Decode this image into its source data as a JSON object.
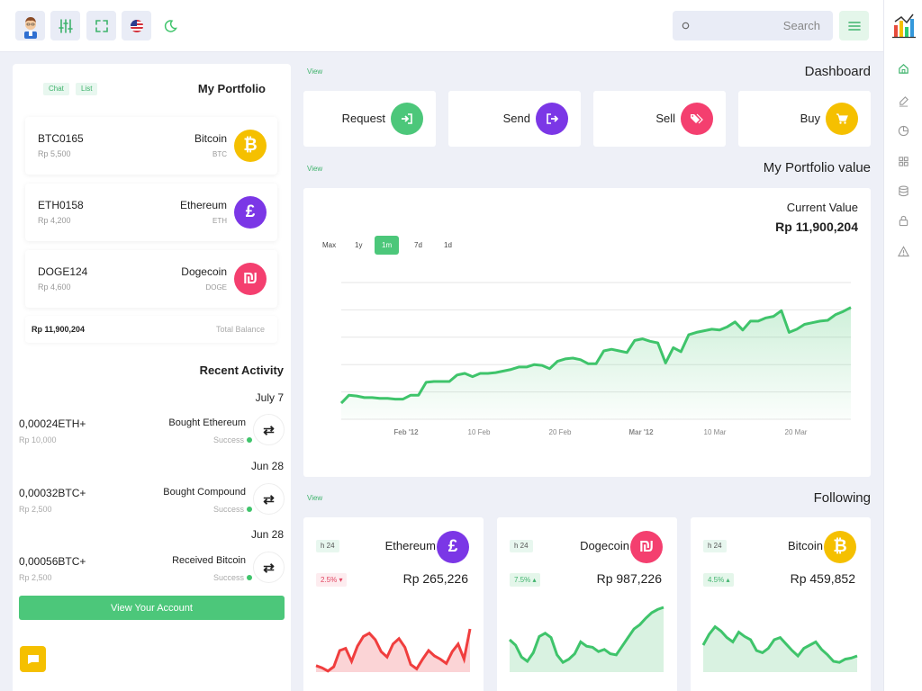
{
  "topbar": {
    "search_placeholder": "Search"
  },
  "colors": {
    "accent_green": "#4cc77a",
    "bitcoin": "#f5c000",
    "ethereum": "#7b37e6",
    "dogecoin": "#f43f6f",
    "background": "#eef0f7"
  },
  "portfolio": {
    "tab_chat": "Chat",
    "tab_list": "List",
    "title": "My Portfolio",
    "coins": [
      {
        "code": "BTC0165",
        "amount": "Rp 5,500",
        "name": "Bitcoin",
        "symbol": "BTC",
        "icon": "bitcoin-icon"
      },
      {
        "code": "ETH0158",
        "amount": "Rp 4,200",
        "name": "Ethereum",
        "symbol": "ETH",
        "icon": "ethereum-icon"
      },
      {
        "code": "DOGE124",
        "amount": "Rp 4,600",
        "name": "Dogecoin",
        "symbol": "DOGE",
        "icon": "dogecoin-icon"
      }
    ],
    "total_value": "Rp 11,900,204",
    "total_label": "Total Balance"
  },
  "activity": {
    "title": "Recent Activity",
    "items": [
      {
        "date": "July 7",
        "amount": "0,00024ETH+",
        "value": "Rp 10,000",
        "description": "Bought Ethereum",
        "status": "Success"
      },
      {
        "date": "Jun 28",
        "amount": "0,00032BTC+",
        "value": "Rp 2,500",
        "description": "Bought Compound",
        "status": "Success"
      },
      {
        "date": "Jun 28",
        "amount": "0,00056BTC+",
        "value": "Rp 2,500",
        "description": "Received Bitcoin",
        "status": "Success"
      }
    ],
    "account_button": "View Your Account"
  },
  "dashboard": {
    "view_label": "View",
    "title": "Dashboard",
    "actions": [
      {
        "label": "Request",
        "icon": "sign-in-icon"
      },
      {
        "label": "Send",
        "icon": "sign-out-icon"
      },
      {
        "label": "Sell",
        "icon": "tags-icon"
      },
      {
        "label": "Buy",
        "icon": "cart-icon"
      }
    ]
  },
  "portfolio_value": {
    "view_label": "View",
    "title": "My Portfolio value",
    "current_label": "Current Value",
    "current_value": "Rp 11,900,204",
    "ranges": [
      "Max",
      "1y",
      "1m",
      "7d",
      "1d"
    ],
    "active_range": "1m"
  },
  "chart_data": {
    "type": "area",
    "xlabel": "",
    "ylabel": "",
    "x_ticks": [
      "Feb '12",
      "10 Feb",
      "20 Feb",
      "Mar '12",
      "10 Mar",
      "20 Mar"
    ],
    "values": [
      20,
      30,
      29,
      27,
      27,
      26,
      26,
      25,
      25,
      30,
      30,
      46,
      47,
      47,
      47,
      55,
      57,
      53,
      57,
      57,
      58,
      60,
      62,
      65,
      65,
      68,
      67,
      63,
      72,
      75,
      76,
      74,
      69,
      69,
      85,
      87,
      85,
      83,
      98,
      100,
      97,
      95,
      70,
      89,
      84,
      105,
      108,
      110,
      112,
      111,
      115,
      121,
      111,
      122,
      122,
      126,
      128,
      135,
      108,
      112,
      118,
      120,
      122,
      123,
      130,
      134,
      139
    ],
    "ylim": [
      0,
      170
    ],
    "grid": true,
    "color": "#3fc46b"
  },
  "following": {
    "view_label": "View",
    "title": "Following",
    "coins": [
      {
        "period": "h 24",
        "name": "Ethereum",
        "icon": "ethereum-icon",
        "change": "2.5%",
        "direction": "down",
        "price": "Rp 265,226",
        "color": "#f03e3e",
        "fill": "#fbd4d6",
        "spark": [
          6,
          4,
          1,
          5,
          20,
          22,
          10,
          24,
          33,
          36,
          30,
          19,
          14,
          26,
          31,
          23,
          7,
          3,
          12,
          20,
          15,
          12,
          8,
          19,
          26,
          12,
          40
        ]
      },
      {
        "period": "h 24",
        "name": "Dogecoin",
        "icon": "dogecoin-icon",
        "change": "7.5%",
        "direction": "up",
        "price": "Rp 987,226",
        "color": "#3fc46b",
        "fill": "#d9f2e1",
        "spark": [
          30,
          25,
          14,
          10,
          18,
          33,
          36,
          32,
          16,
          9,
          12,
          17,
          28,
          24,
          23,
          19,
          21,
          17,
          16,
          24,
          32,
          40,
          44,
          50,
          55,
          58,
          60
        ]
      },
      {
        "period": "h 24",
        "name": "Bitcoin",
        "icon": "bitcoin-icon",
        "change": "4.5%",
        "direction": "up",
        "price": "Rp 459,852",
        "color": "#3fc46b",
        "fill": "#d9f2e1",
        "spark": [
          25,
          35,
          42,
          38,
          32,
          28,
          37,
          33,
          30,
          20,
          18,
          22,
          30,
          32,
          26,
          20,
          15,
          22,
          25,
          28,
          21,
          16,
          10,
          9,
          12,
          13,
          15
        ]
      }
    ]
  }
}
